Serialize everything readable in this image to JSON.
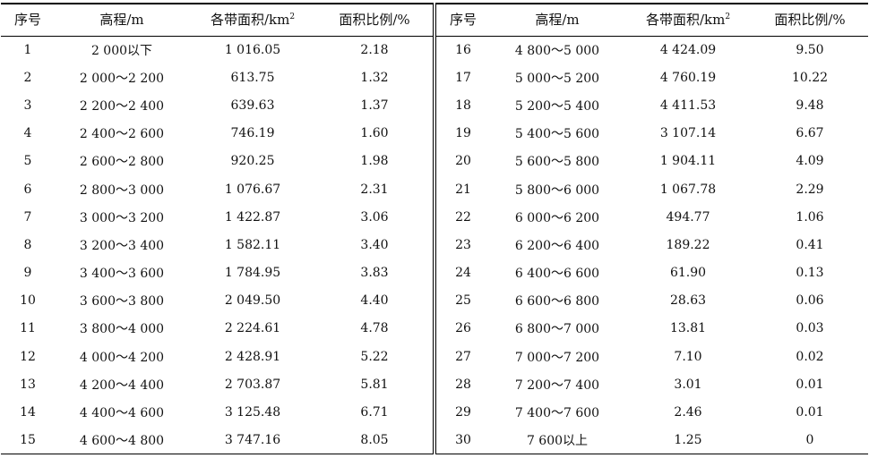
{
  "headers": {
    "index": "序号",
    "elevation": "高程/m",
    "area": "各带面积/km",
    "area_sup": "2",
    "ratio": "面积比例/%"
  },
  "rows_left": [
    {
      "no": "1",
      "elev": "2 000以下",
      "area": "1 016.05",
      "pct": "2.18"
    },
    {
      "no": "2",
      "elev": "2 000～2 200",
      "area": "613.75",
      "pct": "1.32"
    },
    {
      "no": "3",
      "elev": "2 200～2 400",
      "area": "639.63",
      "pct": "1.37"
    },
    {
      "no": "4",
      "elev": "2 400～2 600",
      "area": "746.19",
      "pct": "1.60"
    },
    {
      "no": "5",
      "elev": "2 600～2 800",
      "area": "920.25",
      "pct": "1.98"
    },
    {
      "no": "6",
      "elev": "2 800～3 000",
      "area": "1 076.67",
      "pct": "2.31"
    },
    {
      "no": "7",
      "elev": "3 000～3 200",
      "area": "1 422.87",
      "pct": "3.06"
    },
    {
      "no": "8",
      "elev": "3 200～3 400",
      "area": "1 582.11",
      "pct": "3.40"
    },
    {
      "no": "9",
      "elev": "3 400～3 600",
      "area": "1 784.95",
      "pct": "3.83"
    },
    {
      "no": "10",
      "elev": "3 600～3 800",
      "area": "2 049.50",
      "pct": "4.40"
    },
    {
      "no": "11",
      "elev": "3 800～4 000",
      "area": "2 224.61",
      "pct": "4.78"
    },
    {
      "no": "12",
      "elev": "4 000～4 200",
      "area": "2 428.91",
      "pct": "5.22"
    },
    {
      "no": "13",
      "elev": "4 200～4 400",
      "area": "2 703.87",
      "pct": "5.81"
    },
    {
      "no": "14",
      "elev": "4 400～4 600",
      "area": "3 125.48",
      "pct": "6.71"
    },
    {
      "no": "15",
      "elev": "4 600～4 800",
      "area": "3 747.16",
      "pct": "8.05"
    }
  ],
  "rows_right": [
    {
      "no": "16",
      "elev": "4 800～5 000",
      "area": "4 424.09",
      "pct": "9.50"
    },
    {
      "no": "17",
      "elev": "5 000～5 200",
      "area": "4 760.19",
      "pct": "10.22"
    },
    {
      "no": "18",
      "elev": "5 200～5 400",
      "area": "4 411.53",
      "pct": "9.48"
    },
    {
      "no": "19",
      "elev": "5 400～5 600",
      "area": "3 107.14",
      "pct": "6.67"
    },
    {
      "no": "20",
      "elev": "5 600～5 800",
      "area": "1 904.11",
      "pct": "4.09"
    },
    {
      "no": "21",
      "elev": "5 800～6 000",
      "area": "1 067.78",
      "pct": "2.29"
    },
    {
      "no": "22",
      "elev": "6 000～6 200",
      "area": "494.77",
      "pct": "1.06"
    },
    {
      "no": "23",
      "elev": "6 200～6 400",
      "area": "189.22",
      "pct": "0.41"
    },
    {
      "no": "24",
      "elev": "6 400～6 600",
      "area": "61.90",
      "pct": "0.13"
    },
    {
      "no": "25",
      "elev": "6 600～6 800",
      "area": "28.63",
      "pct": "0.06"
    },
    {
      "no": "26",
      "elev": "6 800～7 000",
      "area": "13.81",
      "pct": "0.03"
    },
    {
      "no": "27",
      "elev": "7 000～7 200",
      "area": "7.10",
      "pct": "0.02"
    },
    {
      "no": "28",
      "elev": "7 200～7 400",
      "area": "3.01",
      "pct": "0.01"
    },
    {
      "no": "29",
      "elev": "7 400～7 600",
      "area": "2.46",
      "pct": "0.01"
    },
    {
      "no": "30",
      "elev": "7 600以上",
      "area": "1.25",
      "pct": "0"
    }
  ]
}
